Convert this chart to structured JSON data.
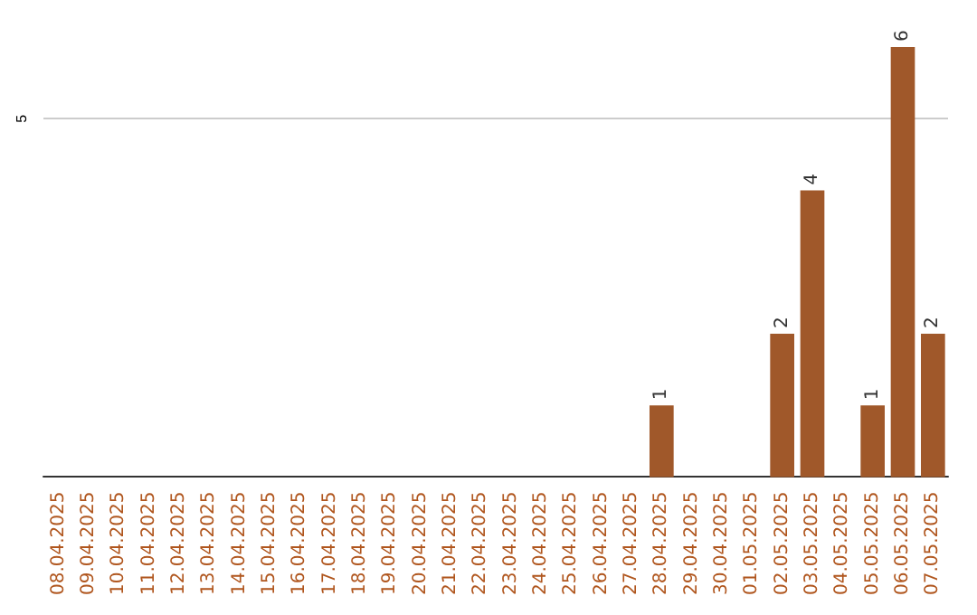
{
  "chart_data": {
    "type": "bar",
    "categories": [
      "08.04.2025",
      "09.04.2025",
      "10.04.2025",
      "11.04.2025",
      "12.04.2025",
      "13.04.2025",
      "14.04.2025",
      "15.04.2025",
      "16.04.2025",
      "17.04.2025",
      "18.04.2025",
      "19.04.2025",
      "20.04.2025",
      "21.04.2025",
      "22.04.2025",
      "23.04.2025",
      "24.04.2025",
      "25.04.2025",
      "26.04.2025",
      "27.04.2025",
      "28.04.2025",
      "29.04.2025",
      "30.04.2025",
      "01.05.2025",
      "02.05.2025",
      "03.05.2025",
      "04.05.2025",
      "05.05.2025",
      "06.05.2025",
      "07.05.2025"
    ],
    "values": [
      null,
      null,
      null,
      null,
      null,
      null,
      null,
      null,
      null,
      null,
      null,
      null,
      null,
      null,
      null,
      null,
      null,
      null,
      null,
      null,
      1,
      null,
      null,
      null,
      2,
      4,
      null,
      1,
      6,
      2
    ],
    "data_labels": true,
    "color": "#a0582a",
    "ylim": [
      0,
      6
    ],
    "yticks": [
      5
    ],
    "grid": "y"
  }
}
